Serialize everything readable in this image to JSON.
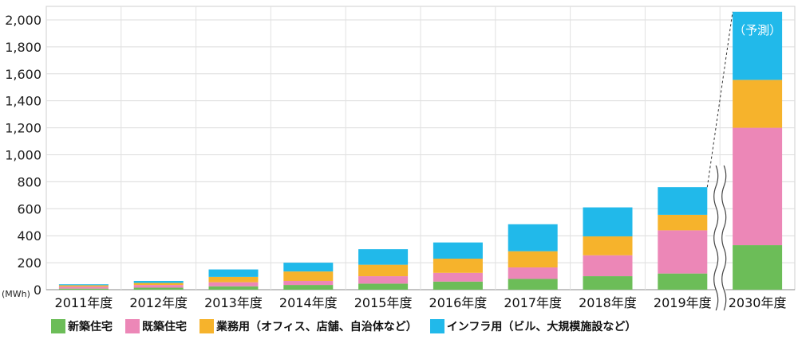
{
  "chart_data": {
    "type": "bar",
    "stacked": true,
    "unit": "(MWh)",
    "categories": [
      "2011年度",
      "2012年度",
      "2013年度",
      "2014年度",
      "2015年度",
      "2016年度",
      "2017年度",
      "2018年度",
      "2019年度",
      "2030年度"
    ],
    "series": [
      {
        "name": "新築住宅",
        "color": "#6cbd58",
        "values": [
          8,
          15,
          25,
          35,
          45,
          60,
          80,
          100,
          120,
          330
        ]
      },
      {
        "name": "既築住宅",
        "color": "#ec87b7",
        "values": [
          15,
          20,
          30,
          30,
          55,
          65,
          85,
          155,
          320,
          870
        ]
      },
      {
        "name": "業務用（オフィス、店舗、自治体など）",
        "color": "#f6b32c",
        "values": [
          10,
          15,
          40,
          70,
          85,
          105,
          120,
          140,
          115,
          355
        ]
      },
      {
        "name": "インフラ用（ビル、大規模施設など）",
        "color": "#21b9ea",
        "values": [
          7,
          15,
          55,
          65,
          115,
          120,
          200,
          215,
          205,
          505
        ]
      }
    ],
    "ylim": [
      0,
      2100
    ],
    "yticks": [
      "0",
      "200",
      "400",
      "600",
      "800",
      "1,000",
      "1,200",
      "1,400",
      "1,600",
      "1,800",
      "2,000"
    ],
    "annotation": "（予測）",
    "grid": true,
    "axis_break": "between 2019年度 and 2030年度",
    "legend_position": "bottom"
  }
}
